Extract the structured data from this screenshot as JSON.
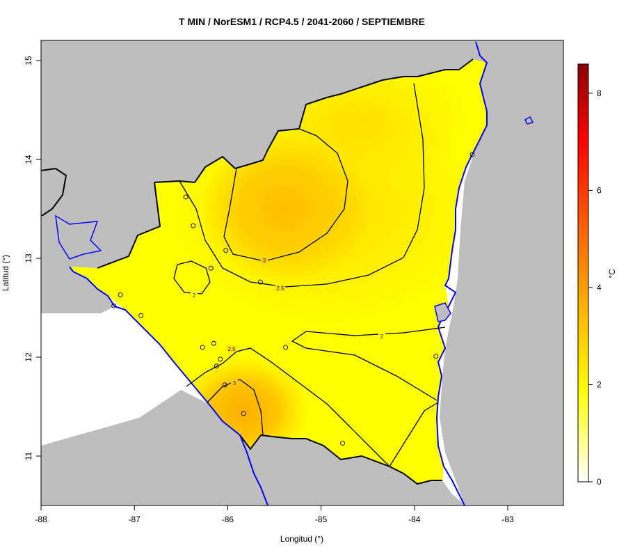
{
  "title": "T MIN / NorESM1 / RCP4.5 / 2041-2060 / SEPTIEMBRE",
  "xlabel": "Longitud (°)",
  "ylabel": "Latitud (°)",
  "x_ticks": [
    "-88",
    "-87",
    "-86",
    "-85",
    "-84",
    "-83"
  ],
  "y_ticks": [
    "11",
    "12",
    "13",
    "14",
    "15"
  ],
  "legend": {
    "unit": "°C",
    "ticks": [
      "0",
      "2",
      "4",
      "6",
      "8"
    ],
    "range": [
      0,
      8.6
    ]
  },
  "contour_labels": [
    "2",
    "2",
    "2.5",
    "2.5",
    "3",
    "3"
  ],
  "colors": {
    "land_outside": "#bebebe",
    "coast": "#0000ff",
    "contour": "#000000",
    "low": "#ffff00",
    "mid": "#ffc000",
    "high": "#8b0000"
  },
  "chart_data": {
    "type": "heatmap",
    "variable": "T MIN",
    "model": "NorESM1",
    "scenario": "RCP4.5",
    "period": "2041-2060",
    "month": "SEPTIEMBRE",
    "xlim": [
      -88,
      -82.4
    ],
    "ylim": [
      10.5,
      15.2
    ],
    "contour_levels": [
      2,
      2.5,
      3
    ],
    "stations": [
      {
        "lon": -86.45,
        "lat": 13.62
      },
      {
        "lon": -86.37,
        "lat": 13.33
      },
      {
        "lon": -86.02,
        "lat": 13.08
      },
      {
        "lon": -86.18,
        "lat": 12.9
      },
      {
        "lon": -85.65,
        "lat": 12.76
      },
      {
        "lon": -87.15,
        "lat": 12.63
      },
      {
        "lon": -87.22,
        "lat": 12.52
      },
      {
        "lon": -86.93,
        "lat": 12.42
      },
      {
        "lon": -86.27,
        "lat": 12.1
      },
      {
        "lon": -86.15,
        "lat": 12.14
      },
      {
        "lon": -85.38,
        "lat": 12.1
      },
      {
        "lon": -86.08,
        "lat": 11.98
      },
      {
        "lon": -86.12,
        "lat": 11.91
      },
      {
        "lon": -86.03,
        "lat": 11.72
      },
      {
        "lon": -85.83,
        "lat": 11.43
      },
      {
        "lon": -84.77,
        "lat": 11.13
      },
      {
        "lon": -83.77,
        "lat": 12.01
      },
      {
        "lon": -83.38,
        "lat": 14.05
      }
    ]
  }
}
